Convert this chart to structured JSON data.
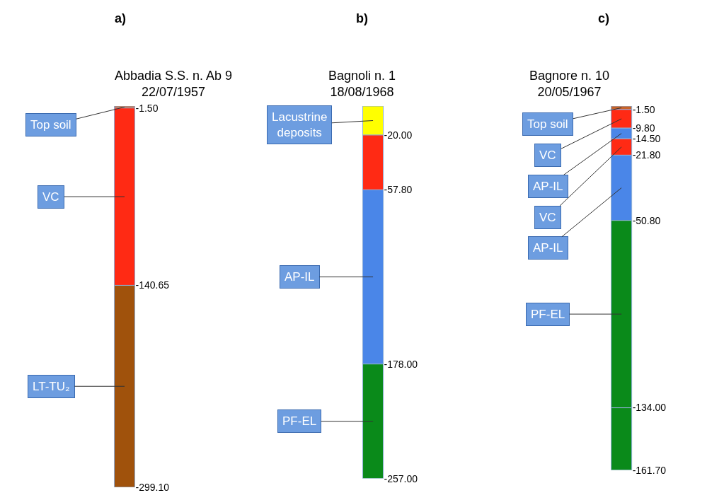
{
  "chart_data": [
    {
      "type": "bar",
      "stacked": true,
      "title": "a)",
      "subtitle": "Abbadia S.S. n. Ab 9\n22/07/1957",
      "categories": [
        null
      ],
      "tick_labels": "y",
      "ylim": [
        -299.1,
        0
      ],
      "yticks": [
        {
          "value": -1.5,
          "label": "-1.50"
        },
        {
          "value": -140.65,
          "label": "-140.65"
        },
        {
          "value": -299.1,
          "label": "-299.10"
        }
      ],
      "series": [
        {
          "name": "Top soil",
          "color": "#c8642a",
          "values": [
            -1.5
          ]
        },
        {
          "name": "VC",
          "color": "#ff2a14",
          "values": [
            -139.15
          ]
        },
        {
          "name": "LT-TU₂",
          "color": "#a0520c",
          "values": [
            -158.45
          ]
        }
      ]
    },
    {
      "type": "bar",
      "stacked": true,
      "title": "b)",
      "subtitle": "Bagnoli n. 1\n18/08/1968",
      "categories": [
        null
      ],
      "tick_labels": "y",
      "ylim": [
        -257,
        0
      ],
      "yticks": [
        {
          "value": -20,
          "label": "-20.00"
        },
        {
          "value": -57.8,
          "label": "-57.80"
        },
        {
          "value": -178,
          "label": "-178.00"
        },
        {
          "value": -257,
          "label": "-257.00"
        }
      ],
      "series": [
        {
          "name": "Lacustrine\ndeposits",
          "color": "#ffff00",
          "values": [
            -20
          ]
        },
        {
          "color": "#ff2a14",
          "values": [
            -37.8
          ]
        },
        {
          "name": "AP-IL",
          "color": "#4a86e8",
          "values": [
            -120.2
          ]
        },
        {
          "name": "PF-EL",
          "color": "#0a8a1a",
          "values": [
            -79
          ]
        }
      ]
    },
    {
      "type": "bar",
      "stacked": true,
      "title": "c)",
      "subtitle": "Bagnore n. 10\n20/05/1967",
      "categories": [
        null
      ],
      "tick_labels": "y",
      "ylim": [
        -161.7,
        0
      ],
      "yticks": [
        {
          "value": -1.5,
          "label": "-1.50"
        },
        {
          "value": -9.8,
          "label": "-9.80"
        },
        {
          "value": -14.5,
          "label": "-14.50"
        },
        {
          "value": -21.8,
          "label": "-21.80"
        },
        {
          "value": -50.8,
          "label": "-50.80"
        },
        {
          "value": -134,
          "label": "-134.00"
        },
        {
          "value": -161.7,
          "label": "-161.70"
        }
      ],
      "series": [
        {
          "name": "Top soil",
          "color": "#c8642a",
          "values": [
            -1.5
          ]
        },
        {
          "name": "VC",
          "color": "#ff2a14",
          "values": [
            -8.3
          ]
        },
        {
          "name": "AP-IL",
          "color": "#4a86e8",
          "values": [
            -4.7
          ]
        },
        {
          "name": "VC",
          "color": "#ff2a14",
          "values": [
            -7.3
          ]
        },
        {
          "name": "AP-IL",
          "color": "#4a86e8",
          "values": [
            -29
          ]
        },
        {
          "name": "PF-EL",
          "color": "#0a8a1a",
          "values": [
            -83.2
          ]
        },
        {
          "color": "#0a8a1a",
          "values": [
            -27.7
          ]
        }
      ]
    }
  ]
}
